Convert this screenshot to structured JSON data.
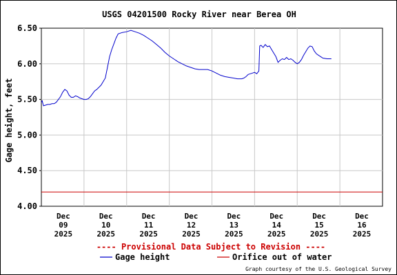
{
  "chart_data": {
    "type": "line",
    "title": "USGS 04201500 Rocky River near Berea OH",
    "ylabel": "Gage height, feet",
    "xlabel": "",
    "ylim": [
      4.0,
      6.5
    ],
    "xlim": [
      0,
      8
    ],
    "grid": true,
    "y_ticks": [
      "4.00",
      "4.50",
      "5.00",
      "5.50",
      "6.00",
      "6.50"
    ],
    "y_tick_values": [
      4.0,
      4.5,
      5.0,
      5.5,
      6.0,
      6.5
    ],
    "x_ticks": [
      {
        "value": 1,
        "label": [
          "Dec",
          "09",
          "2025"
        ]
      },
      {
        "value": 2,
        "label": [
          "Dec",
          "10",
          "2025"
        ]
      },
      {
        "value": 3,
        "label": [
          "Dec",
          "11",
          "2025"
        ]
      },
      {
        "value": 4,
        "label": [
          "Dec",
          "12",
          "2025"
        ]
      },
      {
        "value": 5,
        "label": [
          "Dec",
          "13",
          "2025"
        ]
      },
      {
        "value": 6,
        "label": [
          "Dec",
          "14",
          "2025"
        ]
      },
      {
        "value": 7,
        "label": [
          "Dec",
          "15",
          "2025"
        ]
      },
      {
        "value": 8,
        "label": [
          "Dec",
          "16",
          "2025"
        ]
      }
    ],
    "series": [
      {
        "name": "Gage height",
        "color": "#0000cc",
        "points": [
          [
            0.0,
            5.46
          ],
          [
            0.02,
            5.48
          ],
          [
            0.05,
            5.41
          ],
          [
            0.1,
            5.42
          ],
          [
            0.15,
            5.43
          ],
          [
            0.2,
            5.43
          ],
          [
            0.25,
            5.44
          ],
          [
            0.3,
            5.44
          ],
          [
            0.35,
            5.46
          ],
          [
            0.4,
            5.5
          ],
          [
            0.45,
            5.54
          ],
          [
            0.5,
            5.6
          ],
          [
            0.55,
            5.64
          ],
          [
            0.6,
            5.62
          ],
          [
            0.65,
            5.56
          ],
          [
            0.7,
            5.53
          ],
          [
            0.75,
            5.53
          ],
          [
            0.8,
            5.55
          ],
          [
            0.85,
            5.54
          ],
          [
            0.9,
            5.52
          ],
          [
            1.0,
            5.5
          ],
          [
            1.05,
            5.5
          ],
          [
            1.1,
            5.51
          ],
          [
            1.15,
            5.54
          ],
          [
            1.2,
            5.58
          ],
          [
            1.25,
            5.62
          ],
          [
            1.3,
            5.64
          ],
          [
            1.4,
            5.7
          ],
          [
            1.5,
            5.8
          ],
          [
            1.55,
            5.95
          ],
          [
            1.6,
            6.1
          ],
          [
            1.65,
            6.2
          ],
          [
            1.7,
            6.28
          ],
          [
            1.75,
            6.36
          ],
          [
            1.8,
            6.42
          ],
          [
            1.9,
            6.44
          ],
          [
            2.0,
            6.45
          ],
          [
            2.1,
            6.47
          ],
          [
            2.2,
            6.45
          ],
          [
            2.3,
            6.43
          ],
          [
            2.4,
            6.4
          ],
          [
            2.5,
            6.36
          ],
          [
            2.6,
            6.32
          ],
          [
            2.7,
            6.27
          ],
          [
            2.8,
            6.22
          ],
          [
            2.9,
            6.16
          ],
          [
            3.0,
            6.11
          ],
          [
            3.1,
            6.07
          ],
          [
            3.2,
            6.03
          ],
          [
            3.3,
            6.0
          ],
          [
            3.4,
            5.97
          ],
          [
            3.5,
            5.95
          ],
          [
            3.6,
            5.93
          ],
          [
            3.7,
            5.92
          ],
          [
            3.8,
            5.92
          ],
          [
            3.9,
            5.92
          ],
          [
            4.0,
            5.9
          ],
          [
            4.1,
            5.87
          ],
          [
            4.2,
            5.84
          ],
          [
            4.3,
            5.82
          ],
          [
            4.4,
            5.81
          ],
          [
            4.5,
            5.8
          ],
          [
            4.6,
            5.79
          ],
          [
            4.7,
            5.79
          ],
          [
            4.75,
            5.8
          ],
          [
            4.8,
            5.82
          ],
          [
            4.85,
            5.85
          ],
          [
            4.9,
            5.86
          ],
          [
            4.95,
            5.87
          ],
          [
            5.0,
            5.88
          ],
          [
            5.05,
            5.86
          ],
          [
            5.1,
            5.9
          ],
          [
            5.12,
            6.25
          ],
          [
            5.15,
            6.26
          ],
          [
            5.2,
            6.23
          ],
          [
            5.25,
            6.27
          ],
          [
            5.3,
            6.24
          ],
          [
            5.35,
            6.25
          ],
          [
            5.4,
            6.2
          ],
          [
            5.45,
            6.15
          ],
          [
            5.5,
            6.1
          ],
          [
            5.55,
            6.02
          ],
          [
            5.6,
            6.05
          ],
          [
            5.65,
            6.07
          ],
          [
            5.7,
            6.06
          ],
          [
            5.75,
            6.09
          ],
          [
            5.8,
            6.06
          ],
          [
            5.85,
            6.07
          ],
          [
            5.9,
            6.05
          ],
          [
            5.95,
            6.02
          ],
          [
            6.0,
            6.0
          ],
          [
            6.05,
            6.02
          ],
          [
            6.1,
            6.06
          ],
          [
            6.15,
            6.12
          ],
          [
            6.2,
            6.17
          ],
          [
            6.25,
            6.22
          ],
          [
            6.3,
            6.25
          ],
          [
            6.35,
            6.24
          ],
          [
            6.4,
            6.18
          ],
          [
            6.45,
            6.14
          ],
          [
            6.5,
            6.12
          ],
          [
            6.55,
            6.1
          ],
          [
            6.6,
            6.08
          ],
          [
            6.7,
            6.07
          ],
          [
            6.8,
            6.07
          ]
        ]
      },
      {
        "name": "Orifice out of water",
        "color": "#cc0000",
        "constant": 4.2
      }
    ],
    "annotation": "---- Provisional Data Subject to Revision ----",
    "credit": "Graph courtesy of the U.S. Geological Survey"
  }
}
